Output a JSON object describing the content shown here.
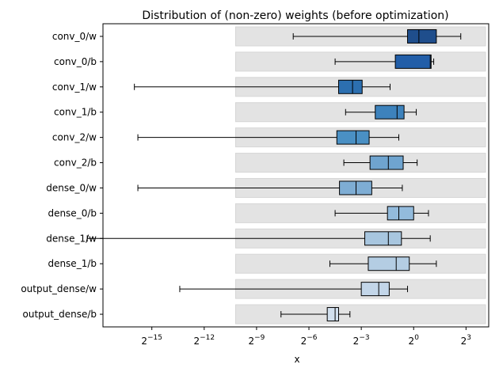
{
  "chart_data": {
    "type": "boxplot",
    "title": "Distribution of (non-zero) weights (before optimization)",
    "xlabel": "x",
    "ylabel": "",
    "x_scale": "log2",
    "xlim_log2": [
      -17.8,
      4.3
    ],
    "background_band_start_log2": -10.2,
    "x_ticks": [
      {
        "exp": -15,
        "label": "2",
        "sup": "−15"
      },
      {
        "exp": -12,
        "label": "2",
        "sup": "−12"
      },
      {
        "exp": -9,
        "label": "2",
        "sup": "−9"
      },
      {
        "exp": -6,
        "label": "2",
        "sup": "−6"
      },
      {
        "exp": -3,
        "label": "2",
        "sup": "−3"
      },
      {
        "exp": 0,
        "label": "2",
        "sup": "0"
      },
      {
        "exp": 3,
        "label": "2",
        "sup": "3"
      }
    ],
    "categories": [
      "conv_0/w",
      "conv_0/b",
      "conv_1/w",
      "conv_1/b",
      "conv_2/w",
      "conv_2/b",
      "dense_0/w",
      "dense_0/b",
      "dense_1/w",
      "dense_1/b",
      "output_dense/w",
      "output_dense/b"
    ],
    "boxes_log2": [
      {
        "label": "conv_0/w",
        "min": -6.9,
        "q1": -0.35,
        "median": 0.3,
        "q3": 1.3,
        "max": 2.7,
        "color": "#1f4e8c"
      },
      {
        "label": "conv_0/b",
        "min": -4.5,
        "q1": -1.05,
        "median": 0.95,
        "q3": 1.0,
        "max": 1.15,
        "color": "#225ea8"
      },
      {
        "label": "conv_1/w",
        "min": -16.0,
        "q1": -4.3,
        "median": -3.5,
        "q3": -2.95,
        "max": -1.35,
        "color": "#2c6fb0"
      },
      {
        "label": "conv_1/b",
        "min": -3.9,
        "q1": -2.2,
        "median": -0.95,
        "q3": -0.55,
        "max": 0.15,
        "color": "#3d82bc"
      },
      {
        "label": "conv_2/w",
        "min": -15.8,
        "q1": -4.4,
        "median": -3.3,
        "q3": -2.55,
        "max": -0.85,
        "color": "#4a90c4"
      },
      {
        "label": "conv_2/b",
        "min": -4.0,
        "q1": -2.5,
        "median": -1.45,
        "q3": -0.6,
        "max": 0.2,
        "color": "#6fa4cf"
      },
      {
        "label": "dense_0/w",
        "min": -15.8,
        "q1": -4.25,
        "median": -3.3,
        "q3": -2.4,
        "max": -0.65,
        "color": "#7eadd4"
      },
      {
        "label": "dense_0/b",
        "min": -4.5,
        "q1": -1.5,
        "median": -0.85,
        "q3": 0.0,
        "max": 0.85,
        "color": "#93bbdc"
      },
      {
        "label": "dense_1/w",
        "min": -18.7,
        "q1": -2.8,
        "median": -1.45,
        "q3": -0.7,
        "max": 0.95,
        "color": "#a8c6df"
      },
      {
        "label": "dense_1/b",
        "min": -4.8,
        "q1": -2.6,
        "median": -1.0,
        "q3": -0.25,
        "max": 1.3,
        "color": "#b4cde3"
      },
      {
        "label": "output_dense/w",
        "min": -13.4,
        "q1": -3.0,
        "median": -2.0,
        "q3": -1.4,
        "max": -0.35,
        "color": "#c3d6e9"
      },
      {
        "label": "output_dense/b",
        "min": -7.6,
        "q1": -4.95,
        "median": -4.5,
        "q3": -4.3,
        "max": -3.65,
        "color": "#d2e0ee"
      }
    ],
    "grid": false,
    "legend": "none"
  }
}
